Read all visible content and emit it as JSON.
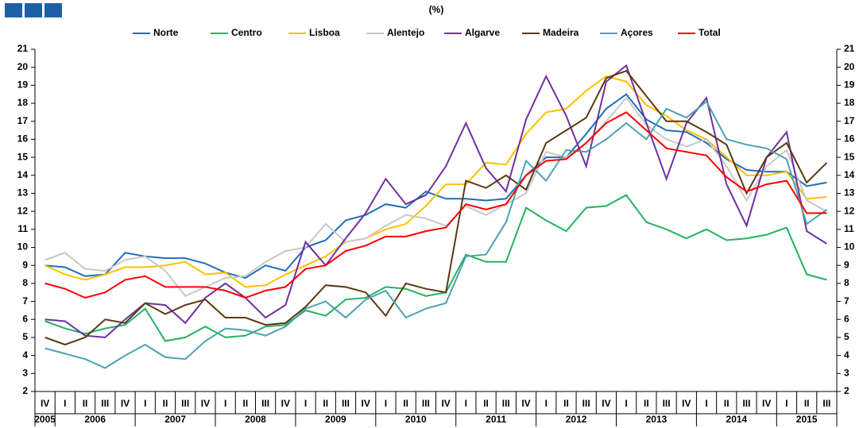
{
  "chart_data": {
    "type": "line",
    "subtitle": "(%)",
    "categories": [
      "IV",
      "I",
      "II",
      "III",
      "IV",
      "I",
      "II",
      "III",
      "IV",
      "I",
      "II",
      "III",
      "IV",
      "I",
      "II",
      "III",
      "IV",
      "I",
      "II",
      "III",
      "IV",
      "I",
      "II",
      "III",
      "IV",
      "I",
      "II",
      "III",
      "IV",
      "I",
      "II",
      "III",
      "IV",
      "I",
      "II",
      "III",
      "IV",
      "I",
      "II",
      "III"
    ],
    "years": [
      "2005",
      "2006",
      "2007",
      "2008",
      "2009",
      "2010",
      "2011",
      "2012",
      "2013",
      "2014",
      "2015"
    ],
    "ylim": [
      2,
      21
    ],
    "yticks": [
      2,
      3,
      4,
      5,
      6,
      7,
      8,
      9,
      10,
      11,
      12,
      13,
      14,
      15,
      16,
      17,
      18,
      19,
      20,
      21
    ],
    "series": [
      {
        "name": "Norte",
        "color": "#1f6fb8",
        "values": [
          9.0,
          8.9,
          8.4,
          8.5,
          9.7,
          9.5,
          9.4,
          9.4,
          9.1,
          8.6,
          8.3,
          9.0,
          8.7,
          10.0,
          10.4,
          11.5,
          11.8,
          12.4,
          12.2,
          13.1,
          12.7,
          12.7,
          12.6,
          12.7,
          14.0,
          15.0,
          15.0,
          16.3,
          17.7,
          18.5,
          17.1,
          16.5,
          16.4,
          15.8,
          14.9,
          14.3,
          14.2,
          14.2,
          13.4,
          13.6
        ]
      },
      {
        "name": "Centro",
        "color": "#22b35e",
        "values": [
          5.9,
          5.5,
          5.2,
          5.5,
          5.7,
          6.6,
          4.8,
          5.0,
          5.6,
          5.0,
          5.1,
          5.6,
          5.7,
          6.5,
          6.2,
          7.1,
          7.2,
          7.8,
          7.7,
          7.3,
          7.5,
          9.6,
          9.2,
          9.2,
          12.2,
          11.5,
          10.9,
          12.2,
          12.3,
          12.9,
          11.4,
          11.0,
          10.5,
          11.0,
          10.4,
          10.5,
          10.7,
          11.1,
          8.5,
          8.2
        ]
      },
      {
        "name": "Lisboa",
        "color": "#ffc000",
        "values": [
          9.0,
          8.5,
          8.2,
          8.5,
          8.9,
          8.9,
          9.0,
          9.2,
          8.5,
          8.6,
          7.8,
          7.9,
          8.5,
          9.0,
          9.5,
          10.3,
          10.5,
          11.0,
          11.3,
          12.3,
          13.5,
          13.5,
          14.7,
          14.6,
          16.3,
          17.5,
          17.7,
          18.7,
          19.5,
          19.2,
          17.9,
          17.3,
          16.5,
          16.0,
          15.0,
          14.0,
          14.0,
          14.2,
          12.7,
          12.8
        ]
      },
      {
        "name": "Alentejo",
        "color": "#c8c8c8",
        "values": [
          9.3,
          9.7,
          8.8,
          8.7,
          9.3,
          9.5,
          8.7,
          7.3,
          7.8,
          8.3,
          8.4,
          9.2,
          9.8,
          10.0,
          11.3,
          10.3,
          10.5,
          11.2,
          11.8,
          11.6,
          11.2,
          12.3,
          11.8,
          12.4,
          13.0,
          15.3,
          15.0,
          15.8,
          17.0,
          18.3,
          16.8,
          16.0,
          15.6,
          16.0,
          14.5,
          12.6,
          14.5,
          15.4,
          12.6,
          12.0
        ]
      },
      {
        "name": "Algarve",
        "color": "#7030a0",
        "values": [
          6.0,
          5.9,
          5.1,
          5.0,
          6.0,
          6.9,
          6.8,
          5.8,
          7.2,
          8.0,
          7.2,
          6.1,
          6.8,
          10.3,
          9.0,
          10.5,
          11.9,
          13.8,
          12.4,
          12.9,
          14.5,
          16.9,
          14.4,
          13.1,
          17.1,
          19.5,
          17.3,
          14.5,
          19.2,
          20.1,
          16.9,
          13.8,
          16.9,
          18.3,
          13.5,
          11.2,
          15.0,
          16.4,
          10.9,
          10.2
        ]
      },
      {
        "name": "Madeira",
        "color": "#5a3a10",
        "values": [
          5.0,
          4.6,
          5.0,
          6.0,
          5.8,
          6.9,
          6.3,
          6.8,
          7.1,
          6.1,
          6.1,
          5.7,
          5.8,
          6.7,
          7.9,
          7.8,
          7.5,
          6.2,
          8.0,
          7.7,
          7.5,
          13.7,
          13.3,
          14.0,
          13.2,
          15.8,
          16.5,
          17.2,
          19.4,
          19.8,
          18.4,
          17.0,
          17.0,
          16.4,
          15.7,
          13.0,
          15.0,
          15.8,
          13.6,
          14.7
        ]
      },
      {
        "name": "Açores",
        "color": "#4ba3b0",
        "values": [
          4.4,
          4.1,
          3.8,
          3.3,
          4.0,
          4.6,
          3.9,
          3.8,
          4.8,
          5.5,
          5.4,
          5.1,
          5.6,
          6.6,
          7.0,
          6.1,
          7.1,
          7.6,
          6.1,
          6.6,
          6.9,
          9.5,
          9.6,
          11.4,
          14.8,
          13.7,
          15.4,
          15.3,
          16.0,
          16.9,
          16.0,
          17.7,
          17.2,
          18.1,
          16.0,
          15.7,
          15.5,
          14.9,
          11.3,
          12.1
        ]
      },
      {
        "name": "Total",
        "color": "#ff0000",
        "values": [
          8.0,
          7.7,
          7.2,
          7.5,
          8.2,
          8.4,
          7.8,
          7.8,
          7.8,
          7.6,
          7.2,
          7.6,
          7.8,
          8.8,
          9.0,
          9.8,
          10.1,
          10.6,
          10.6,
          10.9,
          11.1,
          12.4,
          12.1,
          12.4,
          14.0,
          14.8,
          14.9,
          15.8,
          16.9,
          17.5,
          16.5,
          15.5,
          15.3,
          15.1,
          13.9,
          13.1,
          13.5,
          13.7,
          11.9,
          11.9
        ]
      }
    ]
  }
}
